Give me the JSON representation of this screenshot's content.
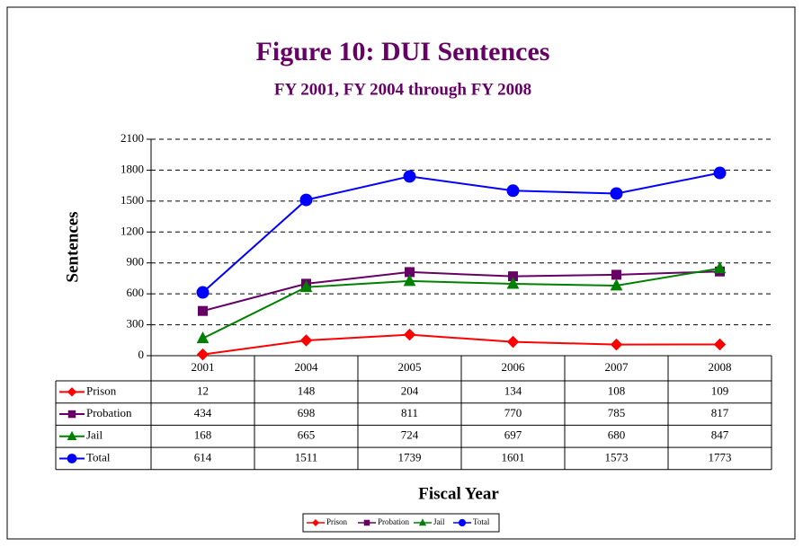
{
  "chart_data": {
    "type": "line",
    "title": "Figure 10: DUI Sentences",
    "subtitle": "FY 2001, FY 2004 through FY 2008",
    "x_label": "Fiscal Year",
    "y_label": "Sentences",
    "categories": [
      "2001",
      "2004",
      "2005",
      "2006",
      "2007",
      "2008"
    ],
    "series": [
      {
        "name": "Prison",
        "color": "#ff0000",
        "marker": "diamond",
        "values": [
          12,
          148,
          204,
          134,
          108,
          109
        ]
      },
      {
        "name": "Probation",
        "color": "#660066",
        "marker": "square",
        "values": [
          434,
          698,
          811,
          770,
          785,
          817
        ]
      },
      {
        "name": "Jail",
        "color": "#008000",
        "marker": "triangle",
        "values": [
          168,
          665,
          724,
          697,
          680,
          847
        ]
      },
      {
        "name": "Total",
        "color": "#0000ff",
        "marker": "circle",
        "values": [
          614,
          1511,
          1739,
          1601,
          1573,
          1773
        ]
      }
    ],
    "ylim": [
      0,
      2100
    ],
    "yticks": [
      0,
      300,
      600,
      900,
      1200,
      1500,
      1800,
      2100
    ],
    "grid": true,
    "data_table": true,
    "legend": "bottom"
  }
}
